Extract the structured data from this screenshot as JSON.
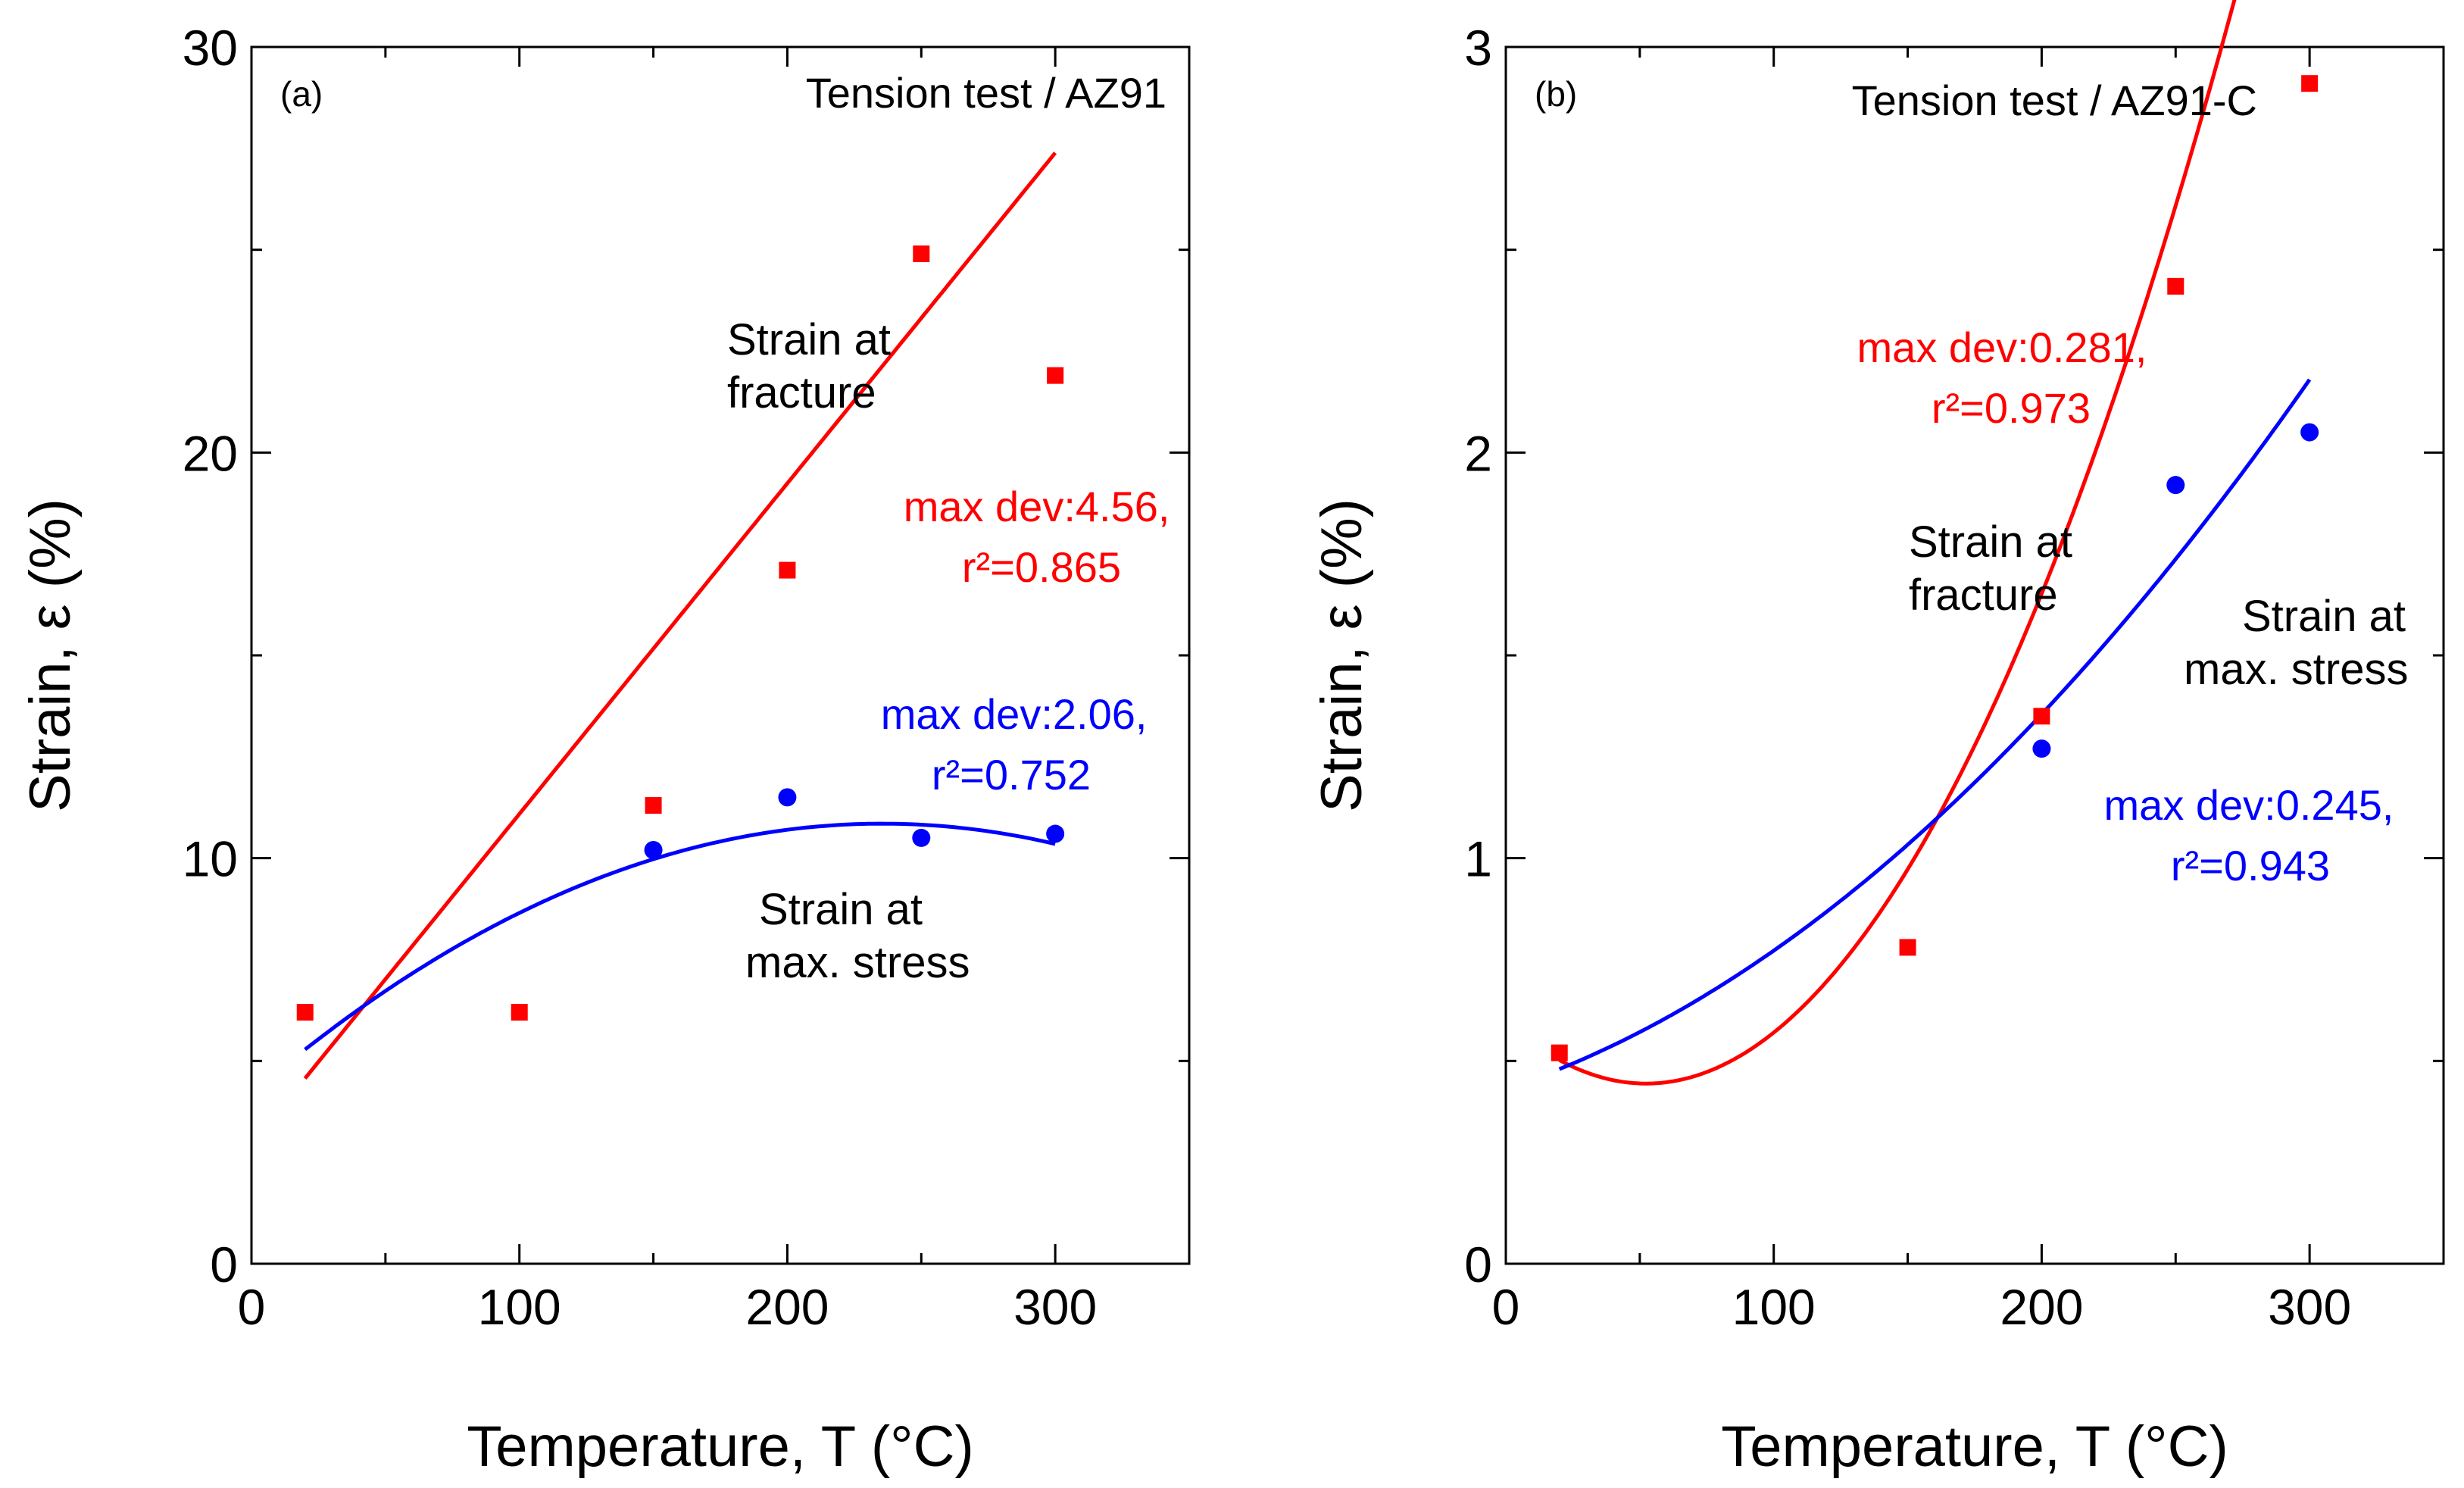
{
  "chart_data": [
    {
      "type": "scatter",
      "panel": "(a)",
      "title": "Tension test / AZ91",
      "xlabel": "Temperature, T (°C)",
      "ylabel": "Strain, ε (%)",
      "xlim": [
        0,
        350
      ],
      "ylim": [
        0,
        30
      ],
      "xticks": [
        0,
        100,
        200,
        300
      ],
      "yticks": [
        0,
        10,
        20,
        30
      ],
      "xtick_labels": [
        "0",
        "100",
        "200",
        "300"
      ],
      "ytick_labels": [
        "0",
        "10",
        "20",
        "30"
      ],
      "grid": false,
      "series": [
        {
          "name": "Strain at fracture",
          "label_lines": [
            "Strain at",
            "fracture"
          ],
          "color": "#ff0000",
          "marker": "square",
          "x": [
            20,
            100,
            150,
            200,
            250,
            300
          ],
          "y": [
            6.2,
            6.2,
            11.3,
            17.1,
            24.9,
            21.9
          ],
          "fit": {
            "c0": 2.94,
            "c1": 0.0815,
            "c2": 0.0,
            "c3": 0.0
          },
          "fit_range": [
            20,
            300
          ],
          "annotation_lines": [
            "max dev:4.56,",
            "r²=0.865"
          ]
        },
        {
          "name": "Strain at max. stress",
          "label_lines": [
            "Strain at",
            "max. stress"
          ],
          "color": "#0000ff",
          "marker": "circle",
          "x": [
            150,
            200,
            250,
            300
          ],
          "y": [
            10.2,
            11.5,
            10.5,
            10.6
          ],
          "fit": {
            "c0": 4.2,
            "c1": 0.0565,
            "c2": -0.00012,
            "c3": 0.0
          },
          "fit_range": [
            20,
            300
          ],
          "annotation_lines": [
            "max dev:2.06,",
            "r²=0.752"
          ]
        }
      ]
    },
    {
      "type": "scatter",
      "panel": "(b)",
      "title": "Tension test / AZ91-C",
      "xlabel": "Temperature, T (°C)",
      "ylabel": "Strain, ε (%)",
      "xlim": [
        0,
        350
      ],
      "ylim": [
        0,
        3
      ],
      "xticks": [
        0,
        100,
        200,
        300
      ],
      "yticks": [
        0,
        1,
        2,
        3
      ],
      "xtick_labels": [
        "0",
        "100",
        "200",
        "300"
      ],
      "ytick_labels": [
        "0",
        "1",
        "2",
        "3"
      ],
      "grid": false,
      "series": [
        {
          "name": "Strain at fracture",
          "label_lines": [
            "Strain at",
            "fracture"
          ],
          "color": "#ff0000",
          "marker": "square",
          "x": [
            20,
            150,
            200,
            250,
            300
          ],
          "y": [
            0.52,
            0.78,
            1.35,
            2.41,
            2.91
          ],
          "fit": {
            "c0": 0.596,
            "c1": -0.0058,
            "c2": 5.54e-05,
            "c3": 0.0
          },
          "fit_range": [
            20,
            300
          ],
          "annotation_lines": [
            "max dev:0.281,",
            "r²=0.973"
          ]
        },
        {
          "name": "Strain at max. stress",
          "label_lines": [
            "Strain at",
            "max. stress"
          ],
          "color": "#0000ff",
          "marker": "circle",
          "x": [
            200,
            250,
            300
          ],
          "y": [
            1.27,
            1.92,
            2.05
          ],
          "fit": {
            "c0": 0.431,
            "c1": 0.0022,
            "c2": 1.21e-05,
            "c3": 0.0
          },
          "fit_range": [
            20,
            300
          ],
          "annotation_lines": [
            "max dev:0.245,",
            "r²=0.943"
          ]
        }
      ]
    }
  ]
}
